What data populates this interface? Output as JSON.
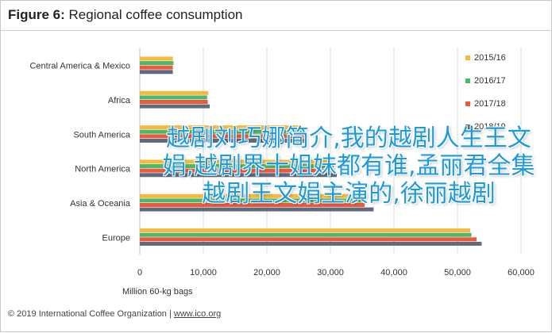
{
  "figure": {
    "title_prefix": "Figure 6:",
    "title_text": "Regional coffee consumption",
    "footer_text": "© 2019 International Coffee Organization",
    "footer_link": "www.ico.org"
  },
  "overlay_text": "越剧刘巧娜简介,我的越剧人生王文娟,越剧界十姐妹都有谁,孟丽君全集越剧王文娟主演的,徐丽越剧",
  "chart_data": {
    "type": "bar",
    "orientation": "horizontal",
    "categories": [
      "Central America & Mexico",
      "Africa",
      "South America",
      "North America",
      "Asia & Oceania",
      "Europe"
    ],
    "series": [
      {
        "name": "2015/16",
        "color": "#f5b942",
        "values": [
          5200,
          10800,
          25000,
          30000,
          35000,
          52000
        ]
      },
      {
        "name": "2016/17",
        "color": "#4cb86a",
        "values": [
          5300,
          10600,
          26000,
          30500,
          35200,
          52200
        ]
      },
      {
        "name": "2017/18",
        "color": "#ec5a3e",
        "values": [
          5200,
          10700,
          25800,
          30700,
          35400,
          53000
        ]
      },
      {
        "name": "2018/19",
        "color": "#5f6b7c",
        "values": [
          5200,
          11000,
          26200,
          31000,
          36800,
          53800
        ]
      }
    ],
    "xlabel": "Million 60-kg bags",
    "xlim": [
      0,
      60000
    ],
    "xticks": [
      0,
      10000,
      20000,
      30000,
      40000,
      50000,
      60000
    ],
    "xtick_labels": [
      "0",
      "10,000",
      "20,000",
      "30,000",
      "40,000",
      "50,000",
      "60,000"
    ],
    "grid": true,
    "legend_position": "right"
  }
}
